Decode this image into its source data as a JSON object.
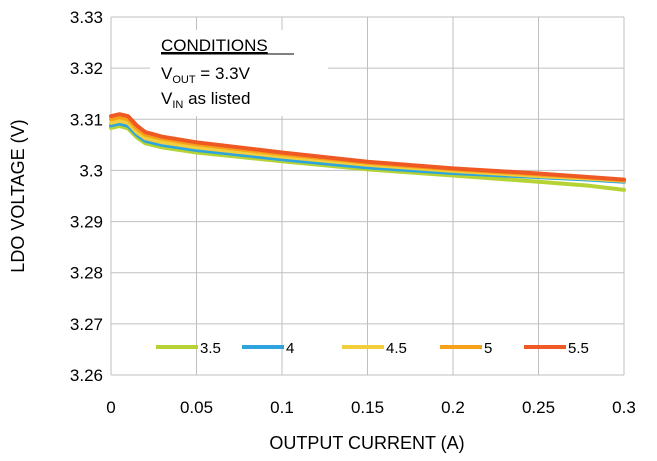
{
  "chart_data": {
    "type": "line",
    "xlabel": "OUTPUT CURRENT (A)",
    "ylabel": "LDO VOLTAGE (V)",
    "xlim": [
      0,
      0.3
    ],
    "ylim": [
      3.26,
      3.33
    ],
    "x_ticks": [
      "0",
      "0.05",
      "0.1",
      "0.15",
      "0.2",
      "0.25",
      "0.3"
    ],
    "y_ticks": [
      "3.26",
      "3.27",
      "3.28",
      "3.29",
      "3.3",
      "3.31",
      "3.32",
      "3.33"
    ],
    "grid": true,
    "legend_position": "bottom-inside",
    "annotation": {
      "heading": "CONDITIONS",
      "line1_main": "V",
      "line1_sub": "OUT",
      "line1_rest": " = 3.3V",
      "line2_main": "V",
      "line2_sub": "IN",
      "line2_rest": " as listed"
    },
    "series": [
      {
        "name": "3.5",
        "color": "#B5D334",
        "x": [
          0,
          0.005,
          0.01,
          0.015,
          0.02,
          0.03,
          0.05,
          0.1,
          0.15,
          0.2,
          0.25,
          0.28,
          0.3
        ],
        "y": [
          3.3083,
          3.3087,
          3.3082,
          3.3065,
          3.3053,
          3.3045,
          3.3035,
          3.3018,
          3.3002,
          3.299,
          3.2978,
          3.297,
          3.2962
        ]
      },
      {
        "name": "4",
        "color": "#2EA4DF",
        "x": [
          0,
          0.005,
          0.01,
          0.015,
          0.02,
          0.03,
          0.05,
          0.1,
          0.15,
          0.2,
          0.25,
          0.28,
          0.3
        ],
        "y": [
          3.3088,
          3.3092,
          3.3087,
          3.307,
          3.3058,
          3.305,
          3.304,
          3.3022,
          3.3006,
          3.2995,
          3.2987,
          3.2982,
          3.2978
        ]
      },
      {
        "name": "4.5",
        "color": "#F2CD3C",
        "x": [
          0,
          0.005,
          0.01,
          0.015,
          0.02,
          0.03,
          0.05,
          0.1,
          0.15,
          0.2,
          0.25,
          0.28,
          0.3
        ],
        "y": [
          3.3093,
          3.3097,
          3.3093,
          3.3075,
          3.3063,
          3.3055,
          3.3045,
          3.3027,
          3.3011,
          3.2999,
          3.2989,
          3.2984,
          3.298
        ]
      },
      {
        "name": "5",
        "color": "#F7A11A",
        "x": [
          0,
          0.005,
          0.01,
          0.015,
          0.02,
          0.03,
          0.05,
          0.1,
          0.15,
          0.2,
          0.25,
          0.28,
          0.3
        ],
        "y": [
          3.31,
          3.3104,
          3.31,
          3.3082,
          3.307,
          3.3062,
          3.3051,
          3.3032,
          3.3015,
          3.3002,
          3.2992,
          3.2986,
          3.2981
        ]
      },
      {
        "name": "5.5",
        "color": "#EF5A24",
        "x": [
          0,
          0.005,
          0.01,
          0.015,
          0.02,
          0.03,
          0.05,
          0.1,
          0.15,
          0.2,
          0.25,
          0.28,
          0.3
        ],
        "y": [
          3.3106,
          3.311,
          3.3106,
          3.3088,
          3.3075,
          3.3066,
          3.3055,
          3.3035,
          3.3017,
          3.3004,
          3.2994,
          3.2987,
          3.2982
        ]
      }
    ]
  }
}
